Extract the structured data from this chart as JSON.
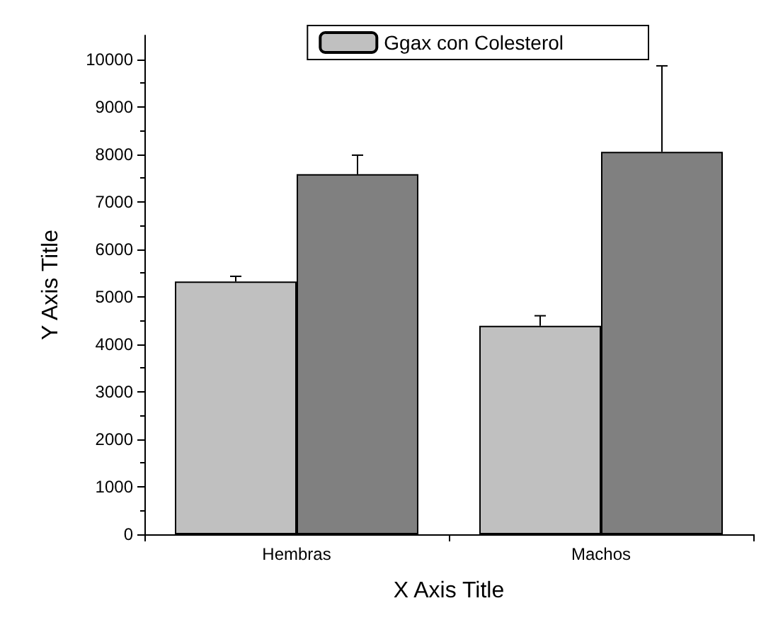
{
  "chart_data": {
    "type": "bar",
    "xlabel": "X Axis Title",
    "ylabel": "Y Axis Title",
    "categories": [
      "Hembras",
      "Machos"
    ],
    "series": [
      {
        "name": "Ggax con Colesterol",
        "color": "#c0c0c0",
        "values": [
          5320,
          4390
        ],
        "errors": [
          [
            5320,
            5430
          ],
          [
            4390,
            4600
          ]
        ]
      },
      {
        "color": "#808080",
        "values": [
          7580,
          8050
        ],
        "errors": [
          [
            7580,
            7980
          ],
          [
            8050,
            9860
          ]
        ]
      }
    ],
    "ylim": [
      0,
      10500
    ],
    "yticks": [
      0,
      1000,
      2000,
      3000,
      4000,
      5000,
      6000,
      7000,
      8000,
      9000,
      10000
    ],
    "grid": false,
    "legend": "top right"
  }
}
